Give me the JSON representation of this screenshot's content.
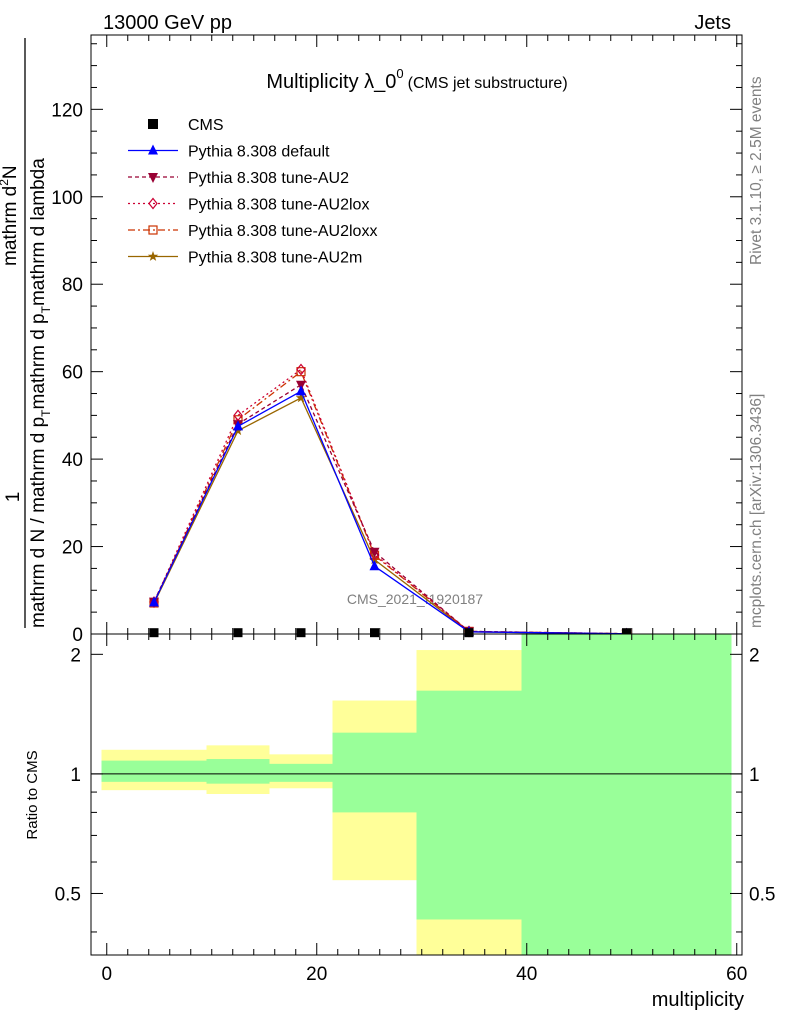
{
  "header": {
    "left": "13000 GeV pp",
    "right": "Jets"
  },
  "side_text": {
    "rivet": "Rivet 3.1.10, ≥ 2.5M events",
    "mcplots": "mcplots.cern.ch [arXiv:1306.3436]"
  },
  "colors": {
    "default": "#0000ff",
    "au2": "#990033",
    "au2lox": "#cc0033",
    "au2loxx": "#cc3300",
    "au2m": "#996600",
    "band_outer": "#ffff99",
    "band_inner": "#99ff99"
  },
  "chart_data": [
    {
      "type": "line",
      "title_main": "Multiplicity λ_0",
      "title_sup": "0",
      "title_sub": "(CMS jet substructure)",
      "watermark": "CMS_2021_I1920187",
      "ylabel_top": "1",
      "ylabel_num": "mathrm d",
      "ylabel_num_sup": "2",
      "ylabel_num_end": "N",
      "ylabel_bottom": "mathrm d N / mathrm d p_T mathrm d p_T mathrm d lambda",
      "ylabel_den_a": "mathrm d N / mathrm d p",
      "ylabel_den_b": "mathrm d p",
      "ylabel_den_c": "mathrm d lambda",
      "ylabel_den_T": "T",
      "xlim": [
        -1.5,
        60.5
      ],
      "ylim": [
        0,
        137
      ],
      "yticks": [
        0,
        20,
        40,
        60,
        80,
        100,
        120
      ],
      "legend_position": "top-left",
      "x": [
        4.5,
        12.5,
        18.5,
        25.5,
        34.5,
        49.5
      ],
      "series": [
        {
          "name": "CMS",
          "key": "cms",
          "marker": "square",
          "values": [
            0.3,
            0.3,
            0.3,
            0.3,
            0.3,
            0.3
          ]
        },
        {
          "name": "Pythia 8.308 default",
          "key": "default",
          "marker": "triangle-up",
          "dash": "",
          "values": [
            7.2,
            47.5,
            55.5,
            15.5,
            0.5,
            0.05
          ]
        },
        {
          "name": "Pythia 8.308 tune-AU2",
          "key": "au2",
          "marker": "triangle-down",
          "dash": "4,3",
          "values": [
            7.4,
            48.0,
            57.0,
            18.8,
            0.6,
            0.07
          ]
        },
        {
          "name": "Pythia 8.308 tune-AU2lox",
          "key": "au2lox",
          "marker": "diamond-open",
          "dash": "2,3",
          "values": [
            7.3,
            50.0,
            60.5,
            18.2,
            0.6,
            0.06
          ]
        },
        {
          "name": "Pythia 8.308 tune-AU2loxx",
          "key": "au2loxx",
          "marker": "square-open",
          "dash": "7,3,2,3",
          "values": [
            7.1,
            49.0,
            60.0,
            18.0,
            0.6,
            0.06
          ]
        },
        {
          "name": "Pythia 8.308 tune-AU2m",
          "key": "au2m",
          "marker": "star",
          "dash": "",
          "values": [
            7.0,
            46.5,
            54.0,
            17.0,
            0.5,
            0.05
          ]
        }
      ]
    },
    {
      "type": "area",
      "ylabel": "Ratio to CMS",
      "xlabel": "multiplicity",
      "xlim": [
        -1.5,
        60.5
      ],
      "ylim": [
        0.35,
        2.25
      ],
      "yticks": [
        0.5,
        1,
        2
      ],
      "xticks": [
        0,
        20,
        40,
        60
      ],
      "reference": 1,
      "bins": [
        {
          "x0": -0.5,
          "x1": 9.5,
          "outer": [
            0.91,
            1.15
          ],
          "inner": [
            0.955,
            1.08
          ]
        },
        {
          "x0": 9.5,
          "x1": 15.5,
          "outer": [
            0.89,
            1.18
          ],
          "inner": [
            0.945,
            1.09
          ]
        },
        {
          "x0": 15.5,
          "x1": 21.5,
          "outer": [
            0.92,
            1.12
          ],
          "inner": [
            0.955,
            1.06
          ]
        },
        {
          "x0": 21.5,
          "x1": 29.5,
          "outer": [
            0.54,
            1.53
          ],
          "inner": [
            0.8,
            1.27
          ]
        },
        {
          "x0": 29.5,
          "x1": 39.5,
          "outer": [
            0.35,
            2.05
          ],
          "inner": [
            0.43,
            1.62
          ]
        },
        {
          "x0": 39.5,
          "x1": 59.5,
          "outer": [
            0.35,
            2.25
          ],
          "inner": [
            0.35,
            2.25
          ]
        }
      ]
    }
  ]
}
